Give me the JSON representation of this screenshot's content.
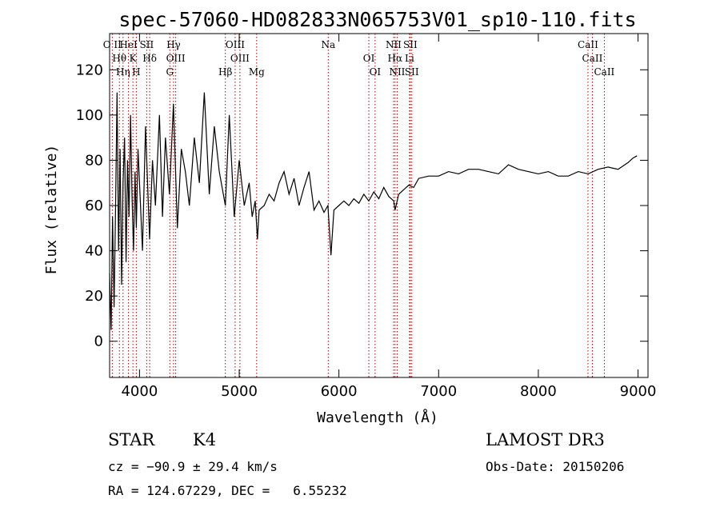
{
  "chart_data": {
    "type": "line",
    "title": "spec-57060-HD082833N065753V01_sp10-110.fits",
    "xlabel": "Wavelength (Å)",
    "ylabel": "Flux (relative)",
    "xlim": [
      3700,
      9100
    ],
    "ylim": [
      -16,
      136
    ],
    "xticks": [
      4000,
      5000,
      6000,
      7000,
      8000,
      9000
    ],
    "yticks": [
      0,
      20,
      40,
      60,
      80,
      100,
      120
    ],
    "series": [
      {
        "name": "flux",
        "x": [
          3700,
          3715,
          3730,
          3745,
          3760,
          3775,
          3790,
          3805,
          3820,
          3835,
          3850,
          3865,
          3880,
          3895,
          3910,
          3925,
          3940,
          3955,
          3968,
          3985,
          4000,
          4030,
          4060,
          4101,
          4130,
          4160,
          4200,
          4230,
          4260,
          4300,
          4340,
          4380,
          4420,
          4460,
          4500,
          4550,
          4600,
          4650,
          4700,
          4750,
          4800,
          4861,
          4900,
          4950,
          5000,
          5050,
          5100,
          5130,
          5160,
          5183,
          5200,
          5250,
          5300,
          5350,
          5400,
          5450,
          5500,
          5550,
          5600,
          5650,
          5700,
          5750,
          5800,
          5850,
          5890,
          5920,
          5950,
          6000,
          6050,
          6100,
          6150,
          6200,
          6250,
          6300,
          6350,
          6400,
          6450,
          6500,
          6550,
          6563,
          6600,
          6650,
          6700,
          6750,
          6800,
          6900,
          7000,
          7100,
          7200,
          7300,
          7400,
          7500,
          7600,
          7700,
          7800,
          7900,
          8000,
          8100,
          8200,
          8300,
          8400,
          8500,
          8600,
          8700,
          8800,
          8900,
          8950,
          8990
        ],
        "values": [
          30,
          5,
          55,
          15,
          60,
          110,
          40,
          85,
          25,
          70,
          90,
          35,
          80,
          55,
          100,
          65,
          40,
          75,
          50,
          85,
          70,
          40,
          95,
          45,
          80,
          60,
          100,
          55,
          90,
          65,
          105,
          50,
          85,
          75,
          60,
          90,
          70,
          110,
          65,
          95,
          75,
          60,
          100,
          55,
          80,
          60,
          70,
          55,
          62,
          45,
          58,
          60,
          65,
          62,
          70,
          75,
          65,
          72,
          60,
          68,
          75,
          58,
          62,
          57,
          60,
          38,
          58,
          60,
          62,
          60,
          63,
          61,
          65,
          62,
          66,
          63,
          68,
          64,
          62,
          58,
          65,
          67,
          69,
          68,
          72,
          73,
          73,
          75,
          74,
          76,
          76,
          75,
          74,
          78,
          76,
          75,
          74,
          75,
          73,
          73,
          75,
          74,
          76,
          77,
          76,
          79,
          81,
          82
        ]
      }
    ],
    "spectral_lines": [
      {
        "label": "O II",
        "wavelength": 3727
      },
      {
        "label": "Hθ",
        "wavelength": 3798
      },
      {
        "label": "Hη",
        "wavelength": 3835
      },
      {
        "label": "HeI",
        "wavelength": 3889
      },
      {
        "label": "K",
        "wavelength": 3934
      },
      {
        "label": "H",
        "wavelength": 3968
      },
      {
        "label": "SII",
        "wavelength": 4072
      },
      {
        "label": "Hδ",
        "wavelength": 4102
      },
      {
        "label": "G",
        "wavelength": 4304
      },
      {
        "label": "Hγ",
        "wavelength": 4341
      },
      {
        "label": "OIII",
        "wavelength": 4363
      },
      {
        "label": "Hβ",
        "wavelength": 4861
      },
      {
        "label": "OIII",
        "wavelength": 4959
      },
      {
        "label": "OIII",
        "wavelength": 5007
      },
      {
        "label": "Mg",
        "wavelength": 5175
      },
      {
        "label": "Na",
        "wavelength": 5893
      },
      {
        "label": "OI",
        "wavelength": 6300
      },
      {
        "label": "OI",
        "wavelength": 6363
      },
      {
        "label": "NII",
        "wavelength": 6548
      },
      {
        "label": "Hα",
        "wavelength": 6563
      },
      {
        "label": "NII",
        "wavelength": 6584
      },
      {
        "label": "SII",
        "wavelength": 6716
      },
      {
        "label": "Li",
        "wavelength": 6708
      },
      {
        "label": "SII",
        "wavelength": 6731
      },
      {
        "label": "CaII",
        "wavelength": 8498
      },
      {
        "label": "CaII",
        "wavelength": 8542
      },
      {
        "label": "CaII",
        "wavelength": 8662
      }
    ]
  },
  "info": {
    "object_class": "STAR",
    "subclass": "K4",
    "survey": "LAMOST DR3",
    "redshift_text": "cz = −90.9 ± 29.4 km/s",
    "obs_date": "Obs-Date: 20150206",
    "coords": "RA = 124.67229, DEC =   6.55232"
  },
  "colors": {
    "line": "#000000",
    "marker": "#b40000"
  }
}
